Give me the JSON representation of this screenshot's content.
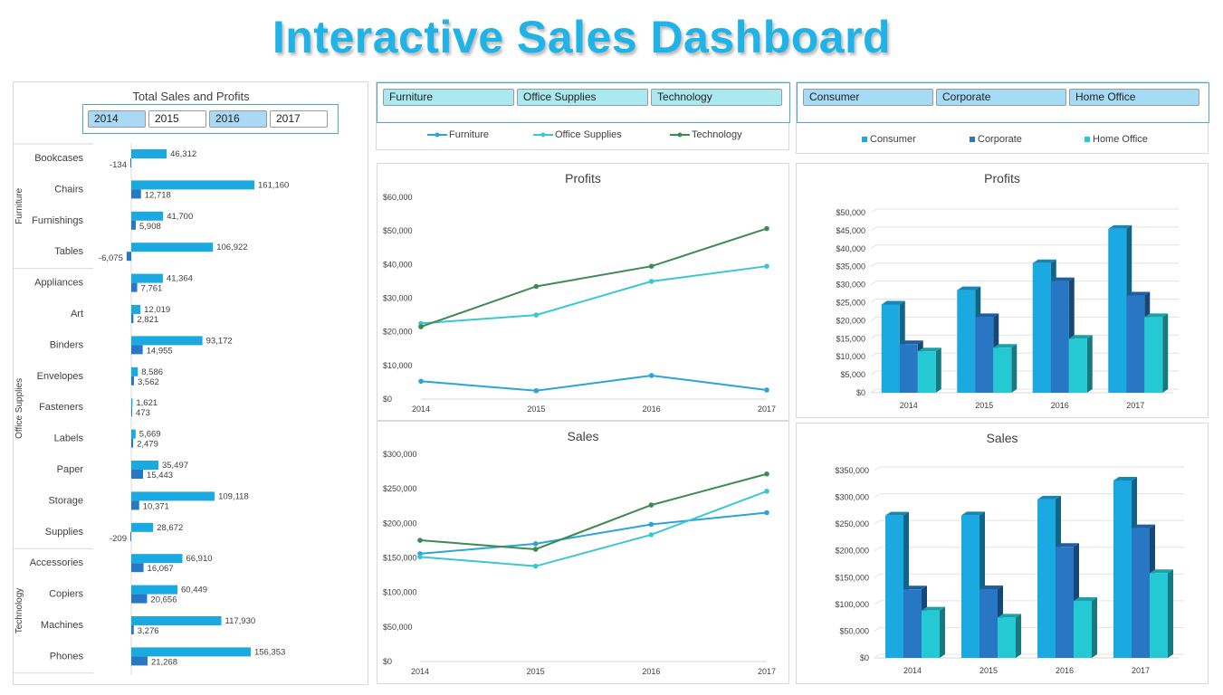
{
  "dashboard_title": "Interactive Sales Dashboard",
  "colors": {
    "sales": "#1ba9e1",
    "profit": "#2777c5",
    "furniture": "#2ca4d8",
    "office_supplies": "#39c8d2",
    "technology": "#3f8a52",
    "consumer": "#1ba9e1",
    "corporate": "#2777c5",
    "home_office": "#24c9d3"
  },
  "year_slicer": {
    "items": [
      {
        "label": "2014",
        "selected": true
      },
      {
        "label": "2015",
        "selected": false
      },
      {
        "label": "2016",
        "selected": true
      },
      {
        "label": "2017",
        "selected": false
      }
    ]
  },
  "category_slicer": {
    "items": [
      {
        "label": "Furniture",
        "selected": true
      },
      {
        "label": "Office Supplies",
        "selected": true
      },
      {
        "label": "Technology",
        "selected": true
      }
    ]
  },
  "segment_slicer": {
    "items": [
      {
        "label": "Consumer",
        "selected": true
      },
      {
        "label": "Corporate",
        "selected": true
      },
      {
        "label": "Home Office",
        "selected": true
      }
    ]
  },
  "chart_data": [
    {
      "type": "bar",
      "orientation": "horizontal",
      "title": "Total Sales and Profits",
      "groups": [
        {
          "name": "Furniture",
          "categories": [
            "Bookcases",
            "Chairs",
            "Furnishings",
            "Tables"
          ]
        },
        {
          "name": "Office Supplies",
          "categories": [
            "Appliances",
            "Art",
            "Binders",
            "Envelopes",
            "Fasteners",
            "Labels",
            "Paper",
            "Storage",
            "Supplies"
          ]
        },
        {
          "name": "Technology",
          "categories": [
            "Accessories",
            "Copiers",
            "Machines",
            "Phones"
          ]
        }
      ],
      "sales": [
        46312,
        161160,
        41700,
        106922,
        41364,
        12019,
        93172,
        8586,
        1621,
        5669,
        35497,
        109118,
        28672,
        66910,
        60449,
        117930,
        156353
      ],
      "sales_labels": [
        "46,312",
        "161,160",
        "41,700",
        "106,922",
        "41,364",
        "12,019",
        "93,172",
        "8,586",
        "1,621",
        "5,669",
        "35,497",
        "109,118",
        "28,672",
        "66,910",
        "60,449",
        "117,930",
        "156,353"
      ],
      "profits": [
        -134,
        12718,
        5908,
        -6075,
        7761,
        2821,
        14955,
        3562,
        473,
        2479,
        15443,
        10371,
        -209,
        16067,
        20656,
        3276,
        21268
      ],
      "profit_labels": [
        "-134",
        "12,718",
        "5,908",
        "-6,075",
        "7,761",
        "2,821",
        "14,955",
        "3,562",
        "473",
        "2,479",
        "15,443",
        "10,371",
        "-209",
        "16,067",
        "20,656",
        "3,276",
        "21,268"
      ]
    },
    {
      "type": "line",
      "title": "Profits",
      "x": [
        "2014",
        "2015",
        "2016",
        "2017"
      ],
      "ylim": [
        0,
        60000
      ],
      "ticks": [
        0,
        10000,
        20000,
        30000,
        40000,
        50000,
        60000
      ],
      "tick_labels": [
        "$0",
        "$10,000",
        "$20,000",
        "$30,000",
        "$40,000",
        "$50,000",
        "$60,000"
      ],
      "series": [
        {
          "name": "Furniture",
          "values": [
            5300,
            2500,
            7000,
            2700
          ]
        },
        {
          "name": "Office Supplies",
          "values": [
            22500,
            25000,
            35000,
            39500
          ]
        },
        {
          "name": "Technology",
          "values": [
            21500,
            33500,
            39500,
            50700
          ]
        }
      ]
    },
    {
      "type": "line",
      "title": "Sales",
      "x": [
        "2014",
        "2015",
        "2016",
        "2017"
      ],
      "ylim": [
        0,
        300000
      ],
      "ticks": [
        0,
        50000,
        100000,
        150000,
        200000,
        250000,
        300000
      ],
      "tick_labels": [
        "$0",
        "$50,000",
        "$100,000",
        "$150,000",
        "$200,000",
        "$250,000",
        "$300,000"
      ],
      "series": [
        {
          "name": "Furniture",
          "values": [
            156000,
            170500,
            198500,
            215500
          ]
        },
        {
          "name": "Office Supplies",
          "values": [
            151500,
            138000,
            183500,
            246500
          ]
        },
        {
          "name": "Technology",
          "values": [
            175500,
            162500,
            226500,
            271500
          ]
        }
      ]
    },
    {
      "type": "bar",
      "title": "Profits",
      "categories": [
        "2014",
        "2015",
        "2016",
        "2017"
      ],
      "ylim": [
        0,
        50000
      ],
      "ticks": [
        0,
        5000,
        10000,
        15000,
        20000,
        25000,
        30000,
        35000,
        40000,
        45000,
        50000
      ],
      "tick_labels": [
        "$0",
        "$5,000",
        "$10,000",
        "$15,000",
        "$20,000",
        "$25,000",
        "$30,000",
        "$35,000",
        "$40,000",
        "$45,000",
        "$50,000"
      ],
      "series": [
        {
          "name": "Consumer",
          "values": [
            24500,
            28500,
            36000,
            45500
          ]
        },
        {
          "name": "Corporate",
          "values": [
            13500,
            21000,
            31000,
            27000
          ]
        },
        {
          "name": "Home Office",
          "values": [
            11500,
            12500,
            15000,
            21000
          ]
        }
      ]
    },
    {
      "type": "bar",
      "title": "Sales",
      "categories": [
        "2014",
        "2015",
        "2016",
        "2017"
      ],
      "ylim": [
        0,
        350000
      ],
      "ticks": [
        0,
        50000,
        100000,
        150000,
        200000,
        250000,
        300000,
        350000
      ],
      "tick_labels": [
        "$0",
        "$50,000",
        "$100,000",
        "$150,000",
        "$200,000",
        "$250,000",
        "$300,000",
        "$350,000"
      ],
      "series": [
        {
          "name": "Consumer",
          "values": [
            266000,
            266500,
            296000,
            331500
          ]
        },
        {
          "name": "Corporate",
          "values": [
            128000,
            128500,
            207500,
            242500
          ]
        },
        {
          "name": "Home Office",
          "values": [
            88500,
            75500,
            106500,
            158500
          ]
        }
      ]
    }
  ]
}
